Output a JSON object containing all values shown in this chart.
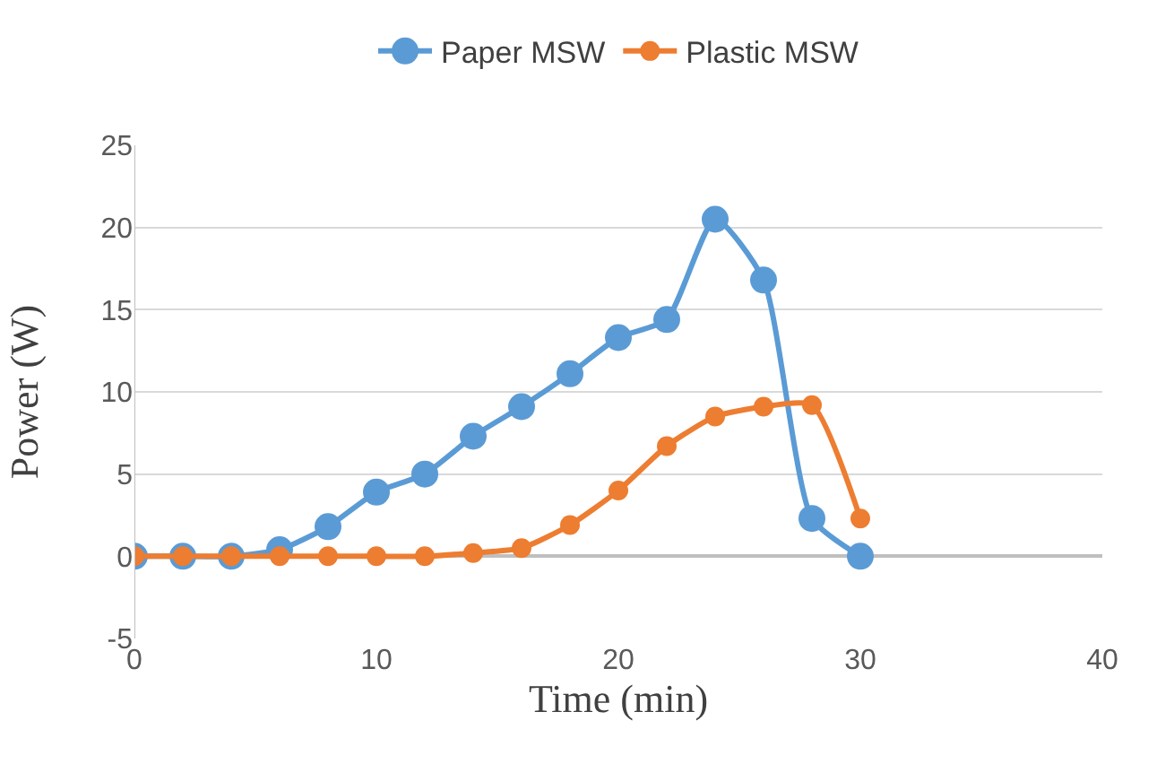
{
  "chart_data": {
    "type": "line",
    "xlabel": "Time (min)",
    "ylabel": "Power (W)",
    "x": [
      0,
      2,
      4,
      6,
      8,
      10,
      12,
      14,
      16,
      18,
      20,
      22,
      24,
      26,
      28,
      30
    ],
    "series": [
      {
        "name": "Paper MSW",
        "color": "#5b9bd5",
        "values": [
          0,
          0,
          0,
          0.4,
          1.8,
          3.9,
          5.0,
          7.3,
          9.1,
          11.1,
          13.3,
          14.4,
          20.5,
          16.8,
          2.3,
          0
        ]
      },
      {
        "name": "Plastic MSW",
        "color": "#ed7d31",
        "values": [
          0,
          0,
          0,
          0,
          0,
          0,
          0,
          0.2,
          0.5,
          1.9,
          4.0,
          6.7,
          8.5,
          9.1,
          9.2,
          2.3
        ]
      }
    ],
    "xlim": [
      0,
      40
    ],
    "xticks": [
      0,
      10,
      20,
      30,
      40
    ],
    "ylim": [
      -5,
      25
    ],
    "yticks": [
      -5,
      0,
      5,
      10,
      15,
      20,
      25
    ],
    "grid": "y",
    "legend": "top",
    "marker": "circle",
    "line_style": "solid"
  }
}
